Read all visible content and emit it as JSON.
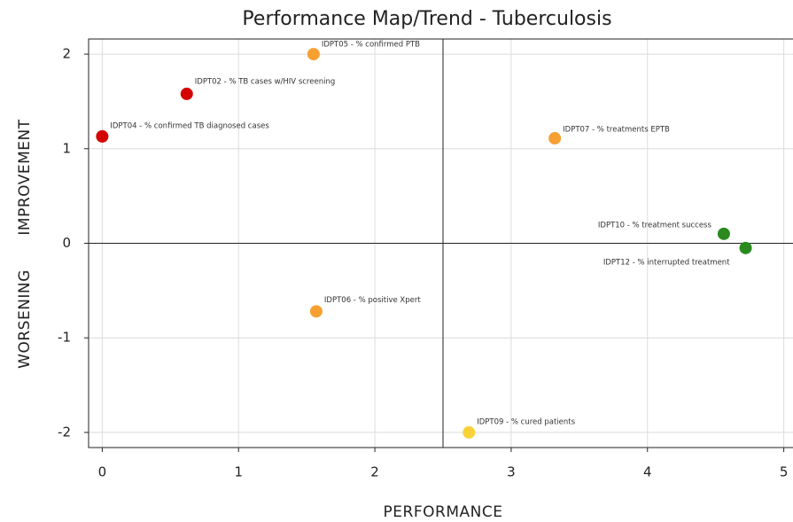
{
  "chart_data": {
    "type": "scatter",
    "title": "Performance Map/Trend - Tuberculosis",
    "xlabel": "PERFORMANCE",
    "ylabel_upper": "IMPROVEMENT",
    "ylabel_lower": "WORSENING",
    "labels": [
      "IDPT04 - % confirmed TB diagnosed cases",
      "IDPT02 - % TB cases w/HIV screening",
      "IDPT05 - % confirmed PTB",
      "IDPT07 - % treatments EPTB",
      "IDPT10 - % treatment success",
      "IDPT12 - % interrupted treatment",
      "IDPT06 - % positive Xpert",
      "IDPT09 - % cured patients"
    ],
    "x": [
      0,
      0.62,
      1.55,
      3.32,
      4.56,
      4.72,
      1.57,
      2.69
    ],
    "values": [
      1.13,
      1.58,
      2.0,
      1.11,
      0.1,
      -0.05,
      -0.72,
      -2.0
    ],
    "colors": [
      "#d40000",
      "#d40000",
      "#f7a032",
      "#f7a032",
      "#2a8a1e",
      "#2a8a1e",
      "#f7a032",
      "#f8d238"
    ],
    "xlim": [
      -0.1,
      5.1
    ],
    "ylim": [
      -2.16,
      2.16
    ],
    "xticks": [
      0,
      1,
      2,
      3,
      4,
      5
    ],
    "yticks": [
      -2,
      -1,
      0,
      1,
      2
    ],
    "quadrant_x": 2.5,
    "quadrant_y": 0,
    "grid": true
  }
}
